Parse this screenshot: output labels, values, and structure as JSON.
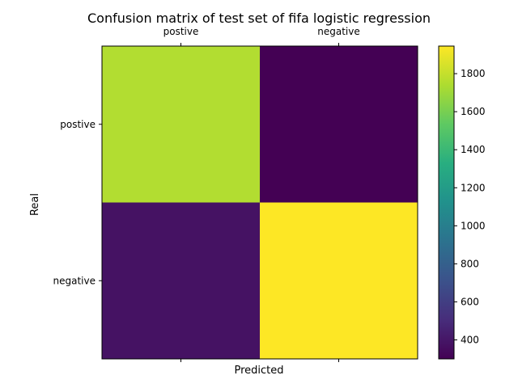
{
  "chart_data": {
    "type": "heatmap",
    "title": "Confusion matrix of test set of fifa logistic regression",
    "xlabel": "Predicted",
    "ylabel": "Real",
    "x_categories": [
      "postive",
      "negative"
    ],
    "y_categories": [
      "postive",
      "negative"
    ],
    "values": [
      [
        1760,
        300
      ],
      [
        380,
        1945
      ]
    ],
    "colorbar": {
      "colormap": "viridis",
      "vmin": 300,
      "vmax": 1945,
      "ticks": [
        400,
        600,
        800,
        1000,
        1200,
        1400,
        1600,
        1800
      ]
    },
    "x_tick_position": "top",
    "grid": false
  }
}
